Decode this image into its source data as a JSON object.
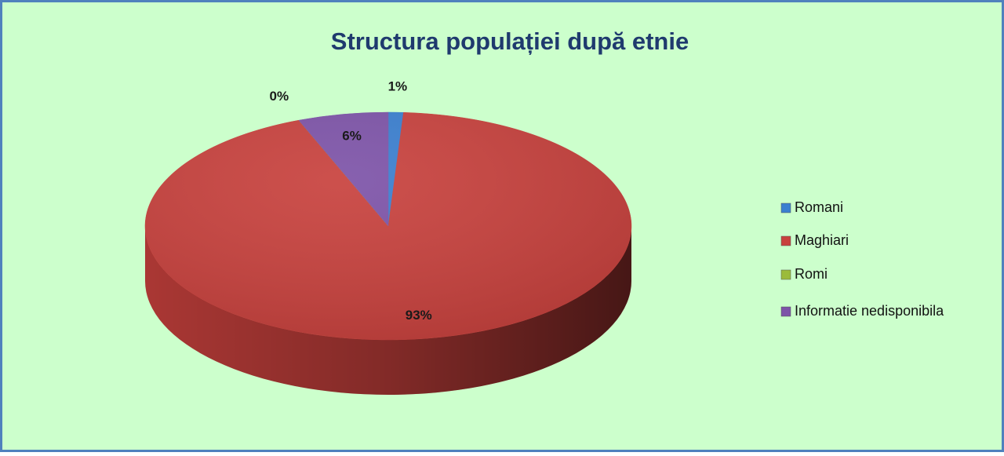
{
  "chart_data": {
    "type": "pie",
    "title": "Structura populației după etnie",
    "categories": [
      "Romani",
      "Maghiari",
      "Romi",
      "Informatie nedisponibila"
    ],
    "values": [
      1,
      93,
      0,
      6
    ],
    "value_labels": [
      "1%",
      "93%",
      "0%",
      "6%"
    ],
    "colors": [
      "#3a7fd0",
      "#c8413d",
      "#9bbb3b",
      "#7d53a8"
    ],
    "legend": "right"
  }
}
